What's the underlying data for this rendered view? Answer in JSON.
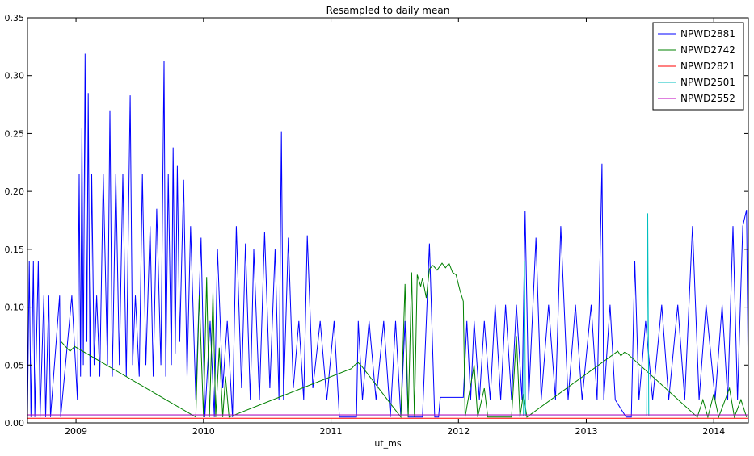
{
  "chart_data": {
    "type": "line",
    "title": "Resampled to daily mean",
    "xlabel": "ut_ms",
    "ylabel": "",
    "xlim": [
      "2008-08-15",
      "2014-04-10"
    ],
    "ylim": [
      0,
      0.35
    ],
    "yticks": [
      0.0,
      0.05,
      0.1,
      0.15,
      0.2,
      0.25,
      0.3,
      0.35
    ],
    "ytick_labels": [
      "0.00",
      "0.05",
      "0.10",
      "0.15",
      "0.20",
      "0.25",
      "0.30",
      "0.35"
    ],
    "xticks": [
      "2009-01-01",
      "2010-01-01",
      "2011-01-01",
      "2012-01-01",
      "2013-01-01",
      "2014-01-01"
    ],
    "xtick_labels": [
      "2009",
      "2010",
      "2011",
      "2012",
      "2013",
      "2014"
    ],
    "grid": false,
    "legend_position": "top-right",
    "series": [
      {
        "name": "NPWD2881",
        "color": "#0000ff",
        "points": [
          [
            "2008-08-15",
            0.005
          ],
          [
            "2008-08-20",
            0.14
          ],
          [
            "2008-08-25",
            0.005
          ],
          [
            "2008-09-01",
            0.14
          ],
          [
            "2008-09-05",
            0.005
          ],
          [
            "2008-09-15",
            0.14
          ],
          [
            "2008-09-20",
            0.005
          ],
          [
            "2008-10-01",
            0.11
          ],
          [
            "2008-10-06",
            0.005
          ],
          [
            "2008-10-15",
            0.11
          ],
          [
            "2008-10-20",
            0.005
          ],
          [
            "2008-11-15",
            0.11
          ],
          [
            "2008-11-18",
            0.005
          ],
          [
            "2008-12-20",
            0.11
          ],
          [
            "2009-01-05",
            0.02
          ],
          [
            "2009-01-10",
            0.215
          ],
          [
            "2009-01-14",
            0.04
          ],
          [
            "2009-01-18",
            0.255
          ],
          [
            "2009-01-22",
            0.05
          ],
          [
            "2009-01-27",
            0.319
          ],
          [
            "2009-02-01",
            0.07
          ],
          [
            "2009-02-05",
            0.285
          ],
          [
            "2009-02-10",
            0.04
          ],
          [
            "2009-02-15",
            0.215
          ],
          [
            "2009-02-22",
            0.05
          ],
          [
            "2009-03-01",
            0.11
          ],
          [
            "2009-03-10",
            0.04
          ],
          [
            "2009-03-20",
            0.215
          ],
          [
            "2009-04-01",
            0.05
          ],
          [
            "2009-04-08",
            0.27
          ],
          [
            "2009-04-15",
            0.04
          ],
          [
            "2009-04-25",
            0.215
          ],
          [
            "2009-05-05",
            0.05
          ],
          [
            "2009-05-15",
            0.215
          ],
          [
            "2009-05-25",
            0.04
          ],
          [
            "2009-06-05",
            0.283
          ],
          [
            "2009-06-12",
            0.05
          ],
          [
            "2009-06-20",
            0.11
          ],
          [
            "2009-07-01",
            0.04
          ],
          [
            "2009-07-10",
            0.215
          ],
          [
            "2009-07-20",
            0.05
          ],
          [
            "2009-08-01",
            0.17
          ],
          [
            "2009-08-10",
            0.04
          ],
          [
            "2009-08-20",
            0.185
          ],
          [
            "2009-09-01",
            0.05
          ],
          [
            "2009-09-10",
            0.313
          ],
          [
            "2009-09-15",
            0.04
          ],
          [
            "2009-09-22",
            0.215
          ],
          [
            "2009-10-01",
            0.05
          ],
          [
            "2009-10-06",
            0.238
          ],
          [
            "2009-10-12",
            0.06
          ],
          [
            "2009-10-18",
            0.222
          ],
          [
            "2009-10-25",
            0.07
          ],
          [
            "2009-11-05",
            0.21
          ],
          [
            "2009-11-15",
            0.04
          ],
          [
            "2009-11-25",
            0.17
          ],
          [
            "2009-12-10",
            0.02
          ],
          [
            "2009-12-25",
            0.16
          ],
          [
            "2010-01-05",
            0.005
          ],
          [
            "2010-01-20",
            0.088
          ],
          [
            "2010-02-01",
            0.005
          ],
          [
            "2010-02-10",
            0.15
          ],
          [
            "2010-02-25",
            0.03
          ],
          [
            "2010-03-10",
            0.088
          ],
          [
            "2010-03-25",
            0.005
          ],
          [
            "2010-04-05",
            0.17
          ],
          [
            "2010-04-20",
            0.03
          ],
          [
            "2010-05-01",
            0.155
          ],
          [
            "2010-05-15",
            0.02
          ],
          [
            "2010-05-25",
            0.15
          ],
          [
            "2010-06-10",
            0.02
          ],
          [
            "2010-06-25",
            0.165
          ],
          [
            "2010-07-10",
            0.03
          ],
          [
            "2010-07-25",
            0.15
          ],
          [
            "2010-08-05",
            0.02
          ],
          [
            "2010-08-12",
            0.252
          ],
          [
            "2010-08-18",
            0.02
          ],
          [
            "2010-09-01",
            0.16
          ],
          [
            "2010-09-15",
            0.03
          ],
          [
            "2010-10-01",
            0.088
          ],
          [
            "2010-10-15",
            0.02
          ],
          [
            "2010-10-25",
            0.162
          ],
          [
            "2010-11-10",
            0.03
          ],
          [
            "2010-12-01",
            0.088
          ],
          [
            "2010-12-20",
            0.02
          ],
          [
            "2011-01-10",
            0.088
          ],
          [
            "2011-01-25",
            0.005
          ],
          [
            "2011-03-15",
            0.005
          ],
          [
            "2011-03-20",
            0.088
          ],
          [
            "2011-04-01",
            0.02
          ],
          [
            "2011-04-20",
            0.088
          ],
          [
            "2011-05-10",
            0.02
          ],
          [
            "2011-06-01",
            0.088
          ],
          [
            "2011-06-20",
            0.005
          ],
          [
            "2011-07-05",
            0.088
          ],
          [
            "2011-07-20",
            0.005
          ],
          [
            "2011-08-01",
            0.088
          ],
          [
            "2011-08-10",
            0.005
          ],
          [
            "2011-09-20",
            0.005
          ],
          [
            "2011-10-10",
            0.155
          ],
          [
            "2011-10-25",
            0.005
          ],
          [
            "2011-11-05",
            0.005
          ],
          [
            "2011-11-10",
            0.022
          ],
          [
            "2011-12-01",
            0.022
          ],
          [
            "2011-12-20",
            0.022
          ],
          [
            "2012-01-15",
            0.022
          ],
          [
            "2012-01-25",
            0.088
          ],
          [
            "2012-02-05",
            0.02
          ],
          [
            "2012-02-15",
            0.088
          ],
          [
            "2012-03-01",
            0.02
          ],
          [
            "2012-03-15",
            0.088
          ],
          [
            "2012-04-01",
            0.02
          ],
          [
            "2012-04-15",
            0.102
          ],
          [
            "2012-05-01",
            0.02
          ],
          [
            "2012-05-15",
            0.102
          ],
          [
            "2012-06-01",
            0.02
          ],
          [
            "2012-06-15",
            0.102
          ],
          [
            "2012-07-01",
            0.02
          ],
          [
            "2012-07-10",
            0.183
          ],
          [
            "2012-07-20",
            0.02
          ],
          [
            "2012-08-10",
            0.16
          ],
          [
            "2012-08-25",
            0.02
          ],
          [
            "2012-09-15",
            0.102
          ],
          [
            "2012-10-05",
            0.02
          ],
          [
            "2012-10-20",
            0.17
          ],
          [
            "2012-11-10",
            0.02
          ],
          [
            "2012-12-01",
            0.102
          ],
          [
            "2012-12-20",
            0.02
          ],
          [
            "2013-01-15",
            0.102
          ],
          [
            "2013-02-01",
            0.02
          ],
          [
            "2013-02-15",
            0.224
          ],
          [
            "2013-02-20",
            0.02
          ],
          [
            "2013-03-10",
            0.102
          ],
          [
            "2013-03-25",
            0.02
          ],
          [
            "2013-04-25",
            0.005
          ],
          [
            "2013-05-10",
            0.005
          ],
          [
            "2013-05-20",
            0.14
          ],
          [
            "2013-06-01",
            0.02
          ],
          [
            "2013-06-20",
            0.088
          ],
          [
            "2013-07-10",
            0.02
          ],
          [
            "2013-08-05",
            0.102
          ],
          [
            "2013-08-25",
            0.02
          ],
          [
            "2013-09-20",
            0.102
          ],
          [
            "2013-10-10",
            0.02
          ],
          [
            "2013-11-01",
            0.17
          ],
          [
            "2013-11-20",
            0.02
          ],
          [
            "2013-12-10",
            0.102
          ],
          [
            "2014-01-05",
            0.02
          ],
          [
            "2014-01-25",
            0.102
          ],
          [
            "2014-02-10",
            0.02
          ],
          [
            "2014-02-25",
            0.17
          ],
          [
            "2014-03-10",
            0.02
          ],
          [
            "2014-03-25",
            0.17
          ],
          [
            "2014-04-05",
            0.184
          ],
          [
            "2014-04-10",
            0.03
          ]
        ]
      },
      {
        "name": "NPWD2742",
        "color": "#008000",
        "points": [
          [
            "2008-11-20",
            0.07
          ],
          [
            "2008-12-05",
            0.065
          ],
          [
            "2008-12-15",
            0.062
          ],
          [
            "2008-12-28",
            0.066
          ],
          [
            "2009-12-10",
            0.005
          ],
          [
            "2009-12-20",
            0.11
          ],
          [
            "2010-01-01",
            0.005
          ],
          [
            "2010-01-10",
            0.126
          ],
          [
            "2010-01-18",
            0.005
          ],
          [
            "2010-01-28",
            0.113
          ],
          [
            "2010-02-05",
            0.005
          ],
          [
            "2010-02-15",
            0.065
          ],
          [
            "2010-02-25",
            0.005
          ],
          [
            "2010-03-05",
            0.04
          ],
          [
            "2010-03-15",
            0.005
          ],
          [
            "2011-03-01",
            0.047
          ],
          [
            "2011-03-10",
            0.05
          ],
          [
            "2011-03-20",
            0.052
          ],
          [
            "2011-03-30",
            0.049
          ],
          [
            "2011-07-20",
            0.005
          ],
          [
            "2011-08-01",
            0.12
          ],
          [
            "2011-08-10",
            0.005
          ],
          [
            "2011-08-20",
            0.13
          ],
          [
            "2011-08-28",
            0.005
          ],
          [
            "2011-09-05",
            0.128
          ],
          [
            "2011-09-15",
            0.118
          ],
          [
            "2011-09-20",
            0.125
          ],
          [
            "2011-10-01",
            0.108
          ],
          [
            "2011-10-10",
            0.133
          ],
          [
            "2011-10-20",
            0.136
          ],
          [
            "2011-11-01",
            0.132
          ],
          [
            "2011-11-15",
            0.138
          ],
          [
            "2011-11-25",
            0.134
          ],
          [
            "2011-12-05",
            0.138
          ],
          [
            "2011-12-15",
            0.13
          ],
          [
            "2011-12-25",
            0.128
          ],
          [
            "2012-01-05",
            0.115
          ],
          [
            "2012-01-15",
            0.105
          ],
          [
            "2012-01-20",
            0.005
          ],
          [
            "2012-02-15",
            0.05
          ],
          [
            "2012-02-25",
            0.005
          ],
          [
            "2012-03-15",
            0.03
          ],
          [
            "2012-03-25",
            0.005
          ],
          [
            "2012-06-01",
            0.005
          ],
          [
            "2012-06-15",
            0.075
          ],
          [
            "2012-06-25",
            0.005
          ],
          [
            "2012-07-05",
            0.025
          ],
          [
            "2012-07-15",
            0.005
          ],
          [
            "2013-04-01",
            0.062
          ],
          [
            "2013-04-10",
            0.058
          ],
          [
            "2013-04-20",
            0.061
          ],
          [
            "2013-04-28",
            0.06
          ],
          [
            "2013-11-15",
            0.005
          ],
          [
            "2013-12-01",
            0.02
          ],
          [
            "2013-12-15",
            0.005
          ],
          [
            "2014-01-01",
            0.025
          ],
          [
            "2014-01-15",
            0.005
          ],
          [
            "2014-02-15",
            0.03
          ],
          [
            "2014-03-01",
            0.005
          ],
          [
            "2014-03-20",
            0.02
          ],
          [
            "2014-04-05",
            0.005
          ]
        ]
      },
      {
        "name": "NPWD2821",
        "color": "#ff0000",
        "points": [
          [
            "2008-08-15",
            0.004
          ],
          [
            "2014-04-10",
            0.004
          ]
        ]
      },
      {
        "name": "NPWD2501",
        "color": "#00bfbf",
        "points": [
          [
            "2008-08-15",
            0.006
          ],
          [
            "2012-07-05",
            0.006
          ],
          [
            "2012-07-08",
            0.14
          ],
          [
            "2012-07-11",
            0.006
          ],
          [
            "2013-06-23",
            0.006
          ],
          [
            "2013-06-26",
            0.181
          ],
          [
            "2013-06-29",
            0.006
          ],
          [
            "2014-04-10",
            0.006
          ]
        ]
      },
      {
        "name": "NPWD2552",
        "color": "#bf00bf",
        "points": [
          [
            "2008-08-15",
            0.007
          ],
          [
            "2014-04-10",
            0.007
          ]
        ]
      }
    ]
  }
}
